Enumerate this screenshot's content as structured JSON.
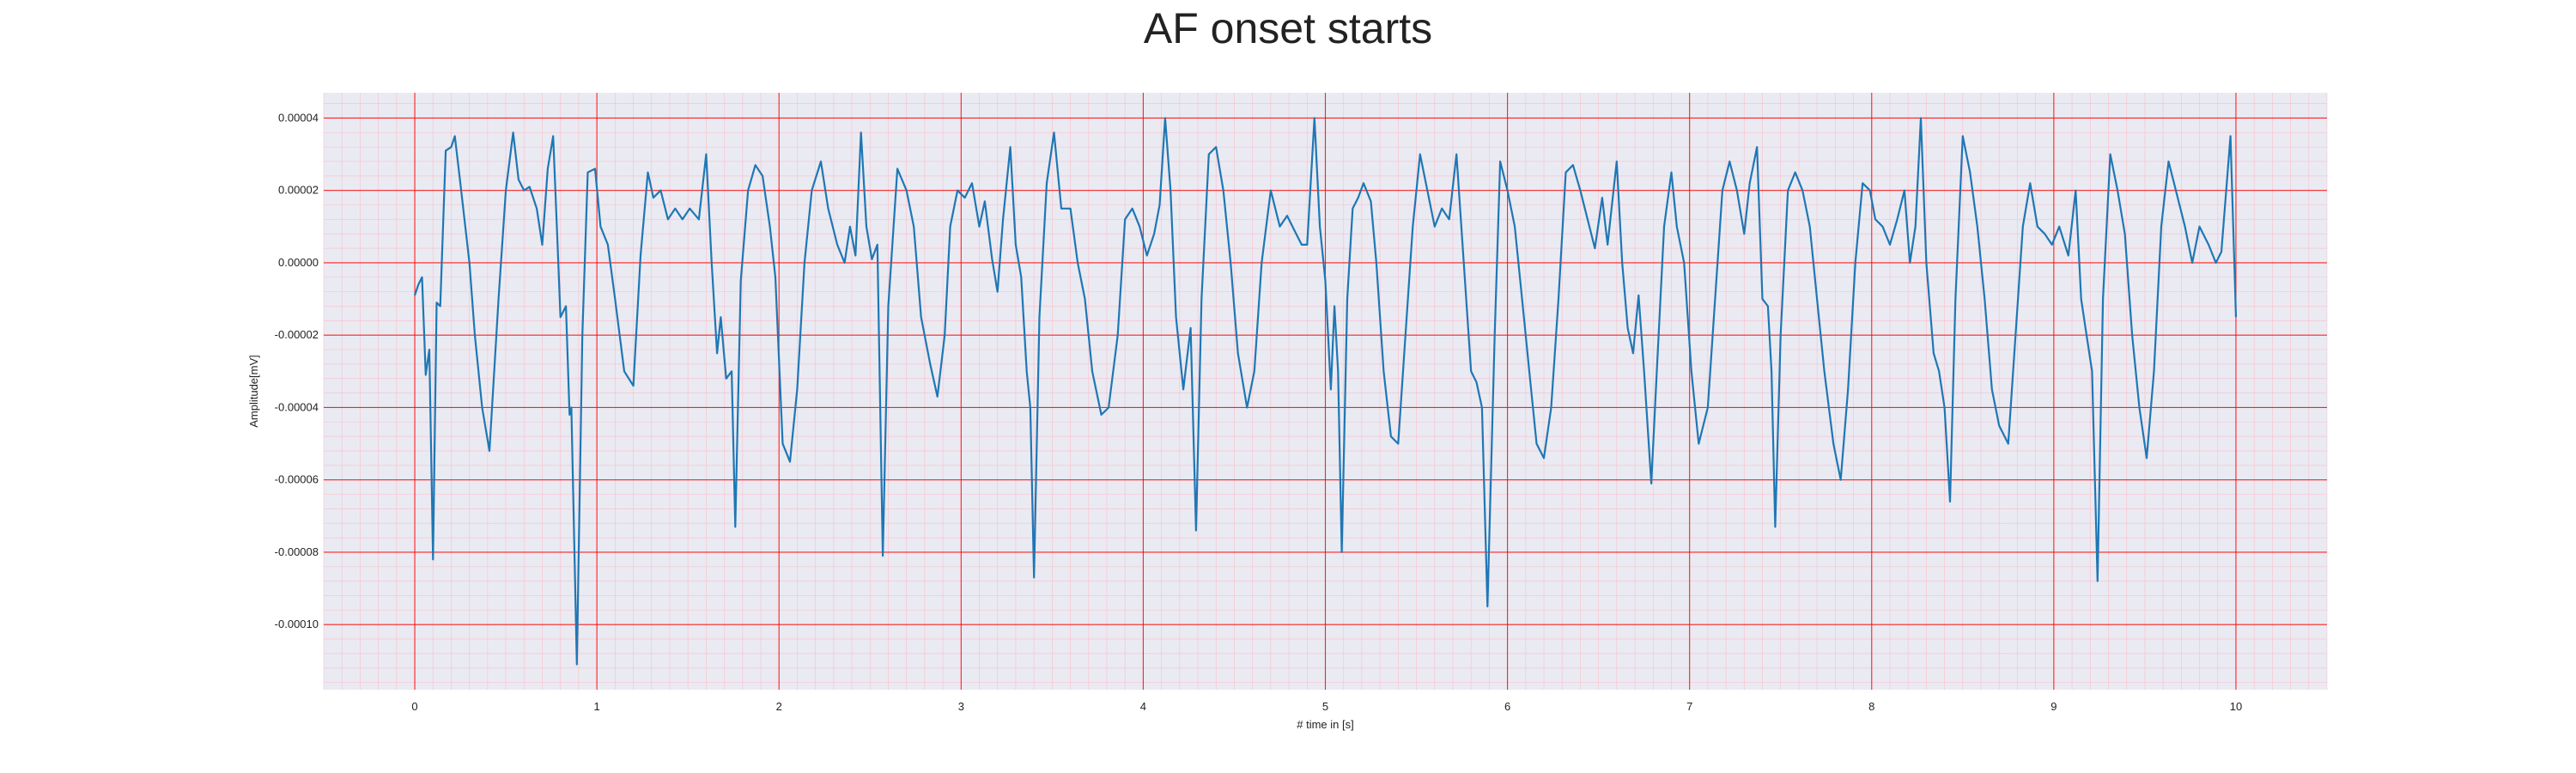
{
  "chart_data": {
    "type": "line",
    "title": "AF onset starts",
    "xlabel": "# time in [s]",
    "ylabel": "Amplitude[mV]",
    "xlim": [
      -0.5,
      10.5
    ],
    "ylim": [
      -0.000118,
      4.7e-05
    ],
    "xticks": [
      0,
      1,
      2,
      3,
      4,
      5,
      6,
      7,
      8,
      9,
      10
    ],
    "yticks": [
      {
        "value": 4e-05,
        "label": "0.00004"
      },
      {
        "value": 2e-05,
        "label": "0.00002"
      },
      {
        "value": 0.0,
        "label": "0.00000"
      },
      {
        "value": -2e-05,
        "label": "-0.00002"
      },
      {
        "value": -4e-05,
        "label": "-0.00004"
      },
      {
        "value": -6e-05,
        "label": "-0.00006"
      },
      {
        "value": -8e-05,
        "label": "-0.00008"
      },
      {
        "value": -0.0001,
        "label": "-0.00010"
      }
    ],
    "grid": true,
    "colors": {
      "background": "#eaeaf2",
      "major_grid": "#ff0000",
      "minor_grid": "#ffb6c1",
      "line": "#1f77b4"
    },
    "series": [
      {
        "name": "",
        "points": [
          [
            0.0,
            -9e-06
          ],
          [
            0.02,
            -6e-06
          ],
          [
            0.04,
            -4e-06
          ],
          [
            0.06,
            -3.1e-05
          ],
          [
            0.08,
            -2.4e-05
          ],
          [
            0.1,
            -8.2e-05
          ],
          [
            0.12,
            -1.1e-05
          ],
          [
            0.14,
            -1.2e-05
          ],
          [
            0.17,
            3.1e-05
          ],
          [
            0.2,
            3.2e-05
          ],
          [
            0.22,
            3.5e-05
          ],
          [
            0.25,
            2.2e-05
          ],
          [
            0.3,
            0.0
          ],
          [
            0.33,
            -2e-05
          ],
          [
            0.37,
            -4e-05
          ],
          [
            0.41,
            -5.2e-05
          ],
          [
            0.46,
            -1e-05
          ],
          [
            0.5,
            2e-05
          ],
          [
            0.54,
            3.6e-05
          ],
          [
            0.57,
            2.3e-05
          ],
          [
            0.6,
            2e-05
          ],
          [
            0.63,
            2.1e-05
          ],
          [
            0.67,
            1.5e-05
          ],
          [
            0.7,
            5e-06
          ],
          [
            0.73,
            2.6e-05
          ],
          [
            0.76,
            3.5e-05
          ],
          [
            0.78,
            1e-05
          ],
          [
            0.8,
            -1.5e-05
          ],
          [
            0.83,
            -1.2e-05
          ],
          [
            0.85,
            -4.2e-05
          ],
          [
            0.86,
            -4e-05
          ],
          [
            0.89,
            -0.000111
          ],
          [
            0.92,
            -2e-05
          ],
          [
            0.95,
            2.5e-05
          ],
          [
            0.99,
            2.6e-05
          ],
          [
            1.02,
            1e-05
          ],
          [
            1.06,
            5e-06
          ],
          [
            1.1,
            -1e-05
          ],
          [
            1.15,
            -3e-05
          ],
          [
            1.2,
            -3.4e-05
          ],
          [
            1.24,
            2e-06
          ],
          [
            1.28,
            2.5e-05
          ],
          [
            1.31,
            1.8e-05
          ],
          [
            1.35,
            2e-05
          ],
          [
            1.39,
            1.2e-05
          ],
          [
            1.43,
            1.5e-05
          ],
          [
            1.47,
            1.2e-05
          ],
          [
            1.51,
            1.5e-05
          ],
          [
            1.56,
            1.2e-05
          ],
          [
            1.6,
            3e-05
          ],
          [
            1.63,
            0.0
          ],
          [
            1.66,
            -2.5e-05
          ],
          [
            1.68,
            -1.5e-05
          ],
          [
            1.71,
            -3.2e-05
          ],
          [
            1.74,
            -3e-05
          ],
          [
            1.76,
            -7.3e-05
          ],
          [
            1.79,
            -5e-06
          ],
          [
            1.83,
            2e-05
          ],
          [
            1.87,
            2.7e-05
          ],
          [
            1.91,
            2.4e-05
          ],
          [
            1.95,
            1e-05
          ],
          [
            1.98,
            -4e-06
          ],
          [
            2.02,
            -5e-05
          ],
          [
            2.06,
            -5.5e-05
          ],
          [
            2.1,
            -3.5e-05
          ],
          [
            2.14,
            0.0
          ],
          [
            2.18,
            2e-05
          ],
          [
            2.23,
            2.8e-05
          ],
          [
            2.27,
            1.5e-05
          ],
          [
            2.32,
            5e-06
          ],
          [
            2.36,
            0.0
          ],
          [
            2.39,
            1e-05
          ],
          [
            2.42,
            2e-06
          ],
          [
            2.45,
            3.6e-05
          ],
          [
            2.48,
            1e-05
          ],
          [
            2.51,
            1e-06
          ],
          [
            2.54,
            5e-06
          ],
          [
            2.57,
            -8.1e-05
          ],
          [
            2.6,
            -1.2e-05
          ],
          [
            2.65,
            2.6e-05
          ],
          [
            2.7,
            2e-05
          ],
          [
            2.74,
            1e-05
          ],
          [
            2.78,
            -1.5e-05
          ],
          [
            2.83,
            -2.8e-05
          ],
          [
            2.87,
            -3.7e-05
          ],
          [
            2.91,
            -2e-05
          ],
          [
            2.94,
            1e-05
          ],
          [
            2.98,
            2e-05
          ],
          [
            3.02,
            1.8e-05
          ],
          [
            3.06,
            2.2e-05
          ],
          [
            3.1,
            1e-05
          ],
          [
            3.13,
            1.7e-05
          ],
          [
            3.17,
            1e-06
          ],
          [
            3.2,
            -8e-06
          ],
          [
            3.23,
            1.2e-05
          ],
          [
            3.27,
            3.2e-05
          ],
          [
            3.3,
            5e-06
          ],
          [
            3.33,
            -4e-06
          ],
          [
            3.36,
            -3e-05
          ],
          [
            3.38,
            -4e-05
          ],
          [
            3.4,
            -8.7e-05
          ],
          [
            3.43,
            -1.5e-05
          ],
          [
            3.47,
            2.2e-05
          ],
          [
            3.51,
            3.6e-05
          ],
          [
            3.55,
            1.5e-05
          ],
          [
            3.6,
            1.5e-05
          ],
          [
            3.64,
            0.0
          ],
          [
            3.68,
            -1e-05
          ],
          [
            3.72,
            -3e-05
          ],
          [
            3.77,
            -4.2e-05
          ],
          [
            3.81,
            -4e-05
          ],
          [
            3.86,
            -2e-05
          ],
          [
            3.9,
            1.2e-05
          ],
          [
            3.94,
            1.5e-05
          ],
          [
            3.98,
            1e-05
          ],
          [
            4.02,
            2e-06
          ],
          [
            4.06,
            8e-06
          ],
          [
            4.09,
            1.6e-05
          ],
          [
            4.12,
            4e-05
          ],
          [
            4.15,
            2e-05
          ],
          [
            4.18,
            -1.5e-05
          ],
          [
            4.22,
            -3.5e-05
          ],
          [
            4.26,
            -1.8e-05
          ],
          [
            4.29,
            -7.4e-05
          ],
          [
            4.32,
            -1e-05
          ],
          [
            4.36,
            3e-05
          ],
          [
            4.4,
            3.2e-05
          ],
          [
            4.44,
            2e-05
          ],
          [
            4.48,
            0.0
          ],
          [
            4.52,
            -2.5e-05
          ],
          [
            4.57,
            -4e-05
          ],
          [
            4.61,
            -3e-05
          ],
          [
            4.65,
            0.0
          ],
          [
            4.7,
            2e-05
          ],
          [
            4.75,
            1e-05
          ],
          [
            4.79,
            1.3e-05
          ],
          [
            4.83,
            9e-06
          ],
          [
            4.87,
            5e-06
          ],
          [
            4.9,
            5e-06
          ],
          [
            4.94,
            4e-05
          ],
          [
            4.97,
            1e-05
          ],
          [
            5.0,
            -5e-06
          ],
          [
            5.03,
            -3.5e-05
          ],
          [
            5.05,
            -1.2e-05
          ],
          [
            5.07,
            -3e-05
          ],
          [
            5.09,
            -8e-05
          ],
          [
            5.12,
            -1e-05
          ],
          [
            5.15,
            1.5e-05
          ],
          [
            5.18,
            1.8e-05
          ],
          [
            5.21,
            2.2e-05
          ],
          [
            5.25,
            1.7e-05
          ],
          [
            5.28,
            0.0
          ],
          [
            5.32,
            -3e-05
          ],
          [
            5.36,
            -4.8e-05
          ],
          [
            5.4,
            -5e-05
          ],
          [
            5.44,
            -2e-05
          ],
          [
            5.48,
            1e-05
          ],
          [
            5.52,
            3e-05
          ],
          [
            5.56,
            2e-05
          ],
          [
            5.6,
            1e-05
          ],
          [
            5.64,
            1.5e-05
          ],
          [
            5.68,
            1.2e-05
          ],
          [
            5.72,
            3e-05
          ],
          [
            5.76,
            0.0
          ],
          [
            5.8,
            -3e-05
          ],
          [
            5.83,
            -3.3e-05
          ],
          [
            5.86,
            -4e-05
          ],
          [
            5.89,
            -9.5e-05
          ],
          [
            5.93,
            -2e-05
          ],
          [
            5.96,
            2.8e-05
          ],
          [
            6.0,
            2e-05
          ],
          [
            6.04,
            1e-05
          ],
          [
            6.08,
            -1e-05
          ],
          [
            6.12,
            -3e-05
          ],
          [
            6.16,
            -5e-05
          ],
          [
            6.2,
            -5.4e-05
          ],
          [
            6.24,
            -4e-05
          ],
          [
            6.28,
            -1e-05
          ],
          [
            6.32,
            2.5e-05
          ],
          [
            6.36,
            2.7e-05
          ],
          [
            6.4,
            2e-05
          ],
          [
            6.44,
            1.2e-05
          ],
          [
            6.48,
            4e-06
          ],
          [
            6.52,
            1.8e-05
          ],
          [
            6.55,
            5e-06
          ],
          [
            6.6,
            2.8e-05
          ],
          [
            6.63,
            0.0
          ],
          [
            6.66,
            -1.8e-05
          ],
          [
            6.69,
            -2.5e-05
          ],
          [
            6.72,
            -9e-06
          ],
          [
            6.75,
            -3e-05
          ],
          [
            6.79,
            -6.1e-05
          ],
          [
            6.82,
            -3e-05
          ],
          [
            6.86,
            1e-05
          ],
          [
            6.9,
            2.5e-05
          ],
          [
            6.93,
            1e-05
          ],
          [
            6.97,
            0.0
          ],
          [
            7.01,
            -3e-05
          ],
          [
            7.05,
            -5e-05
          ],
          [
            7.1,
            -4e-05
          ],
          [
            7.14,
            -1e-05
          ],
          [
            7.18,
            2e-05
          ],
          [
            7.22,
            2.8e-05
          ],
          [
            7.26,
            2e-05
          ],
          [
            7.3,
            8e-06
          ],
          [
            7.33,
            2.2e-05
          ],
          [
            7.37,
            3.2e-05
          ],
          [
            7.4,
            -1e-05
          ],
          [
            7.43,
            -1.2e-05
          ],
          [
            7.45,
            -3e-05
          ],
          [
            7.47,
            -7.3e-05
          ],
          [
            7.5,
            -2e-05
          ],
          [
            7.54,
            2e-05
          ],
          [
            7.58,
            2.5e-05
          ],
          [
            7.62,
            2e-05
          ],
          [
            7.66,
            1e-05
          ],
          [
            7.7,
            -1e-05
          ],
          [
            7.74,
            -3e-05
          ],
          [
            7.79,
            -5e-05
          ],
          [
            7.83,
            -6e-05
          ],
          [
            7.87,
            -3.5e-05
          ],
          [
            7.91,
            0.0
          ],
          [
            7.95,
            2.2e-05
          ],
          [
            7.99,
            2e-05
          ],
          [
            8.02,
            1.2e-05
          ],
          [
            8.06,
            1e-05
          ],
          [
            8.1,
            5e-06
          ],
          [
            8.14,
            1.2e-05
          ],
          [
            8.18,
            2e-05
          ],
          [
            8.21,
            0.0
          ],
          [
            8.24,
            1e-05
          ],
          [
            8.27,
            4e-05
          ],
          [
            8.3,
            0.0
          ],
          [
            8.34,
            -2.5e-05
          ],
          [
            8.37,
            -3e-05
          ],
          [
            8.4,
            -4e-05
          ],
          [
            8.43,
            -6.6e-05
          ],
          [
            8.46,
            -1e-05
          ],
          [
            8.5,
            3.5e-05
          ],
          [
            8.54,
            2.5e-05
          ],
          [
            8.58,
            1e-05
          ],
          [
            8.62,
            -1e-05
          ],
          [
            8.66,
            -3.5e-05
          ],
          [
            8.7,
            -4.5e-05
          ],
          [
            8.75,
            -5e-05
          ],
          [
            8.79,
            -2e-05
          ],
          [
            8.83,
            1e-05
          ],
          [
            8.87,
            2.2e-05
          ],
          [
            8.91,
            1e-05
          ],
          [
            8.95,
            8e-06
          ],
          [
            8.99,
            5e-06
          ],
          [
            9.03,
            1e-05
          ],
          [
            9.08,
            2e-06
          ],
          [
            9.12,
            2e-05
          ],
          [
            9.15,
            -1e-05
          ],
          [
            9.18,
            -2e-05
          ],
          [
            9.21,
            -3e-05
          ],
          [
            9.24,
            -8.8e-05
          ],
          [
            9.27,
            -1e-05
          ],
          [
            9.31,
            3e-05
          ],
          [
            9.35,
            2e-05
          ],
          [
            9.39,
            8e-06
          ],
          [
            9.43,
            -2e-05
          ],
          [
            9.47,
            -4e-05
          ],
          [
            9.51,
            -5.4e-05
          ],
          [
            9.55,
            -3e-05
          ],
          [
            9.59,
            1e-05
          ],
          [
            9.63,
            2.8e-05
          ],
          [
            9.67,
            2e-05
          ],
          [
            9.72,
            1e-05
          ],
          [
            9.76,
            0.0
          ],
          [
            9.8,
            1e-05
          ],
          [
            9.85,
            5e-06
          ],
          [
            9.89,
            0.0
          ],
          [
            9.92,
            3e-06
          ],
          [
            9.97,
            3.5e-05
          ],
          [
            10.0,
            -1.5e-05
          ]
        ]
      }
    ]
  }
}
